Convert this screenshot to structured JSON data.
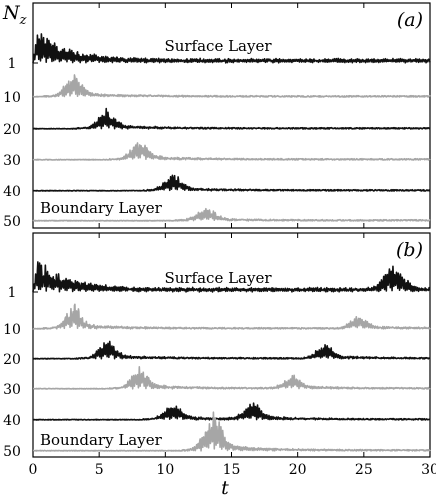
{
  "chart_data": {
    "type": "line",
    "ylabel": "N",
    "ylabel_sub": "z",
    "xlabel": "t",
    "xlim": [
      0,
      30
    ],
    "x_ticks": [
      "0",
      "5",
      "10",
      "15",
      "20",
      "25",
      "30"
    ],
    "y_ticks": [
      "1",
      "10",
      "20",
      "30",
      "40",
      "50"
    ],
    "grid": false,
    "colors": {
      "dark": "#111111",
      "gray": "#a6a6a6"
    },
    "panels": [
      {
        "label": "(a)",
        "annotations": {
          "top": "Surface Layer",
          "bottom": "Boundary Layer"
        },
        "series": [
          {
            "layer": 1,
            "color": "dark",
            "peaks": [
              {
                "t": 0.6,
                "amp": 1.0
              }
            ]
          },
          {
            "layer": 10,
            "color": "gray",
            "peaks": [
              {
                "t": 3.0,
                "amp": 0.8
              }
            ]
          },
          {
            "layer": 20,
            "color": "dark",
            "peaks": [
              {
                "t": 5.5,
                "amp": 0.65
              }
            ]
          },
          {
            "layer": 30,
            "color": "gray",
            "peaks": [
              {
                "t": 8.0,
                "amp": 0.7
              }
            ]
          },
          {
            "layer": 40,
            "color": "dark",
            "peaks": [
              {
                "t": 10.5,
                "amp": 0.55
              }
            ]
          },
          {
            "layer": 50,
            "color": "gray",
            "peaks": [
              {
                "t": 13.0,
                "amp": 0.45
              }
            ]
          }
        ]
      },
      {
        "label": "(b)",
        "annotations": {
          "top": "Surface Layer",
          "bottom": "Boundary Layer"
        },
        "series": [
          {
            "layer": 1,
            "color": "dark",
            "peaks": [
              {
                "t": 0.6,
                "amp": 1.0
              },
              {
                "t": 27.3,
                "amp": 1.0
              }
            ]
          },
          {
            "layer": 10,
            "color": "gray",
            "peaks": [
              {
                "t": 3.0,
                "amp": 0.85
              },
              {
                "t": 24.5,
                "amp": 0.45
              }
            ]
          },
          {
            "layer": 20,
            "color": "dark",
            "peaks": [
              {
                "t": 5.5,
                "amp": 0.65
              },
              {
                "t": 22.0,
                "amp": 0.5
              }
            ]
          },
          {
            "layer": 30,
            "color": "gray",
            "peaks": [
              {
                "t": 8.0,
                "amp": 0.7
              },
              {
                "t": 19.5,
                "amp": 0.45
              }
            ]
          },
          {
            "layer": 40,
            "color": "dark",
            "peaks": [
              {
                "t": 10.5,
                "amp": 0.55
              },
              {
                "t": 16.5,
                "amp": 0.55
              }
            ]
          },
          {
            "layer": 50,
            "color": "gray",
            "peaks": [
              {
                "t": 13.5,
                "amp": 1.3
              }
            ]
          }
        ]
      }
    ]
  }
}
